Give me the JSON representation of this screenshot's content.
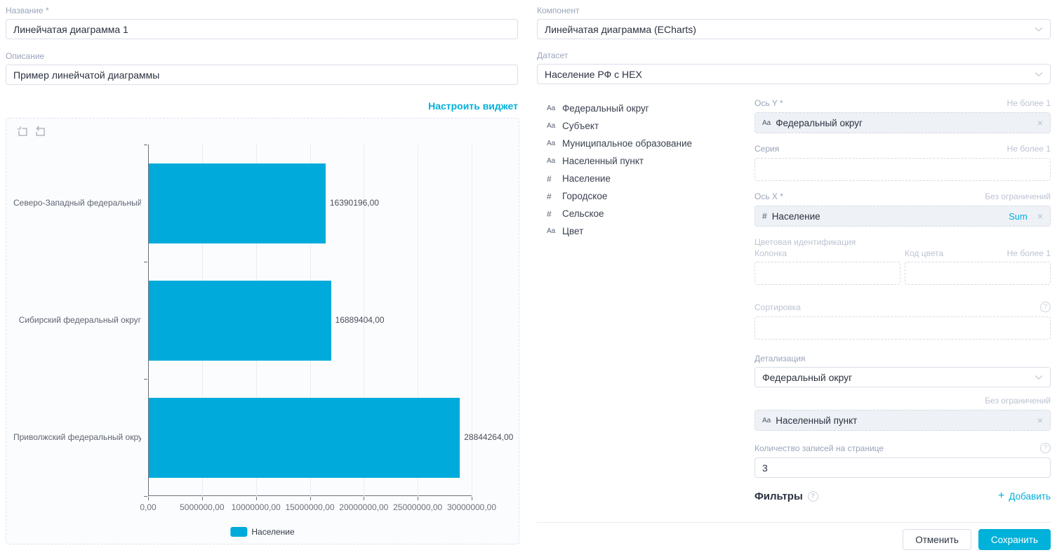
{
  "accent_color": "#00b1d9",
  "left_panel": {
    "name": {
      "label": "Название *",
      "value": "Линейчатая диаграмма 1"
    },
    "description": {
      "label": "Описание",
      "value": "Пример линейчатой диаграммы"
    },
    "configure_link": "Настроить виджет"
  },
  "chart_data": {
    "type": "bar",
    "orientation": "horizontal",
    "title": "",
    "xlabel": "",
    "ylabel": "",
    "categories": [
      "Северо-Западный федеральный ок...",
      "Сибирский федеральный округ",
      "Приволжский федеральный округ"
    ],
    "values": [
      16390196,
      16889404,
      28844264
    ],
    "value_labels": [
      "16390196,00",
      "16889404,00",
      "28844264,00"
    ],
    "x_ticks": [
      "0,00",
      "5000000,00",
      "10000000,00",
      "15000000,00",
      "20000000,00",
      "25000000,00",
      "30000000,00"
    ],
    "xlim": [
      0,
      30000000
    ],
    "grid": true,
    "legend": [
      "Население"
    ],
    "legend_position": "bottom",
    "bar_color": "#00abdb"
  },
  "right_panel": {
    "component": {
      "label": "Компонент",
      "value": "Линейчатая диаграмма (ECharts)"
    },
    "dataset": {
      "label": "Датасет",
      "value": "Население РФ с HEX"
    },
    "fields": [
      {
        "prefix": "Aa",
        "name": "Федеральный округ"
      },
      {
        "prefix": "Aa",
        "name": "Субъект"
      },
      {
        "prefix": "Aa",
        "name": "Муниципальное образование"
      },
      {
        "prefix": "Aa",
        "name": "Населенный пункт"
      },
      {
        "prefix": "#",
        "name": "Население"
      },
      {
        "prefix": "#",
        "name": "Городское"
      },
      {
        "prefix": "#",
        "name": "Сельское"
      },
      {
        "prefix": "Aa",
        "name": "Цвет"
      }
    ],
    "axis_y": {
      "label": "Ось Y *",
      "limit": "Не более 1",
      "chip": {
        "prefix": "Aa",
        "label": "Федеральный округ"
      }
    },
    "series": {
      "label": "Серия",
      "limit": "Не более 1"
    },
    "axis_x": {
      "label": "Ось X *",
      "limit": "Без ограничений",
      "chip": {
        "prefix": "#",
        "label": "Население",
        "aggregation": "Sum"
      }
    },
    "color_identification": {
      "label": "Цветовая идентификация",
      "column_label": "Колонка",
      "color_code_label": "Код цвета",
      "limit": "Не более 1"
    },
    "sorting": {
      "label": "Сортировка"
    },
    "detalization": {
      "label": "Детализация",
      "value": "Федеральный округ",
      "limit": "Без ограничений",
      "chip": {
        "prefix": "Aa",
        "label": "Населенный пункт"
      }
    },
    "page_size": {
      "label": "Количество записей на странице",
      "value": "3"
    },
    "filters": {
      "label": "Фильтры",
      "add_label": "Добавить"
    },
    "footer": {
      "cancel": "Отменить",
      "save": "Сохранить"
    }
  }
}
